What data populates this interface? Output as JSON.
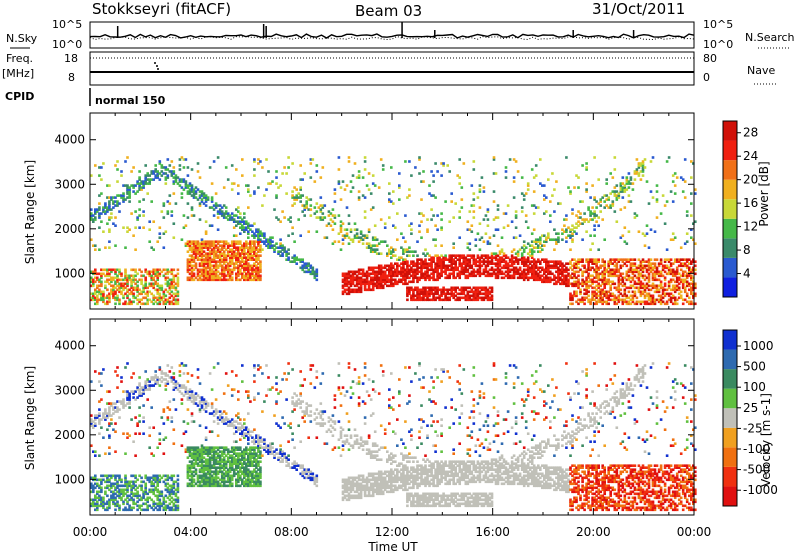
{
  "header": {
    "station": "Stokkseyri (fitACF)",
    "beam": "Beam 03",
    "date": "31/Oct/2011"
  },
  "strips": {
    "nsky_label": "N.Sky",
    "nsearch_label": "N.Search",
    "noise_ticks": [
      "10^5",
      "10^0"
    ],
    "noise_ticks_right": [
      "10^5",
      "10^0"
    ],
    "freq_label": "Freq.",
    "freq_unit": "[MHz]",
    "freq_ticks": [
      "18",
      "8"
    ],
    "nave_label": "Nave",
    "nave_ticks": [
      "80",
      "0"
    ],
    "cpid_label": "CPID",
    "cpid_value": "normal 150"
  },
  "colors": {
    "power_scale": [
      "#1020e0",
      "#2a5ad0",
      "#3a8a6a",
      "#45b848",
      "#c8d838",
      "#f0b020",
      "#f07018",
      "#f02010",
      "#d01008"
    ],
    "velocity_scale": [
      "#1030d0",
      "#2e6ab0",
      "#3a8a60",
      "#60c040",
      "#c0c0b8",
      "#f0a020",
      "#f07010",
      "#f03010",
      "#e01010"
    ],
    "ground_scatter": "#c0c0b8"
  },
  "chart_data": [
    {
      "type": "heatmap",
      "title": "Power",
      "xlabel": "",
      "ylabel": "Slant Range [km]",
      "xlim": [
        "00:00",
        "24:00"
      ],
      "x_ticks": [
        "00:00",
        "04:00",
        "08:00",
        "12:00",
        "16:00",
        "20:00",
        "00:00"
      ],
      "ylim": [
        200,
        4600
      ],
      "y_ticks": [
        1000,
        2000,
        3000,
        4000
      ],
      "colorbar_label": "Power [dB]",
      "colorbar_ticks": [
        4,
        8,
        12,
        16,
        20,
        24,
        28
      ],
      "colorbar_range": [
        0,
        30
      ]
    },
    {
      "type": "heatmap",
      "title": "Velocity",
      "xlabel": "Time UT",
      "ylabel": "Slant Range [km]",
      "xlim": [
        "00:00",
        "24:00"
      ],
      "x_ticks": [
        "00:00",
        "04:00",
        "08:00",
        "12:00",
        "16:00",
        "20:00",
        "00:00"
      ],
      "ylim": [
        200,
        4600
      ],
      "y_ticks": [
        1000,
        2000,
        3000,
        4000
      ],
      "colorbar_label": "Velocity [m s-1]",
      "colorbar_ticks": [
        1000,
        500,
        100,
        25,
        -25,
        -100,
        -500,
        -1000
      ]
    }
  ]
}
